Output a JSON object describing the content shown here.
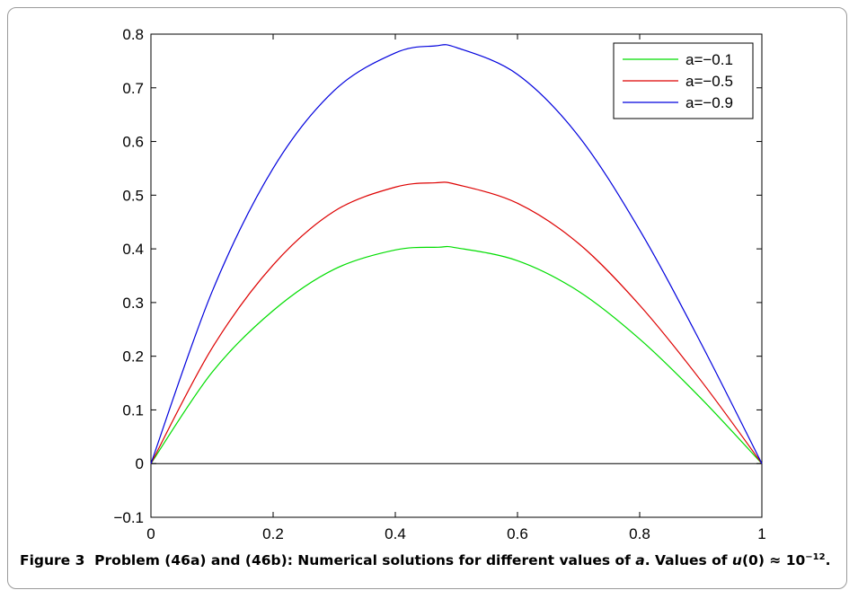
{
  "chart_data": {
    "type": "line",
    "xlim": [
      0,
      1
    ],
    "ylim": [
      -0.1,
      0.8
    ],
    "x_ticks": [
      "0",
      "0.2",
      "0.4",
      "0.6",
      "0.8",
      "1"
    ],
    "y_ticks": [
      "−0.1",
      "0",
      "0.1",
      "0.2",
      "0.3",
      "0.4",
      "0.5",
      "0.6",
      "0.7",
      "0.8"
    ],
    "legend_position": "top-right",
    "grid": false,
    "series": [
      {
        "name": "a=−0.1",
        "color": "#00dd00",
        "x": [
          0,
          0.1,
          0.2,
          0.3,
          0.4,
          0.47,
          0.5,
          0.6,
          0.7,
          0.8,
          0.9,
          1.0
        ],
        "y": [
          0,
          0.17,
          0.285,
          0.362,
          0.398,
          0.403,
          0.402,
          0.378,
          0.321,
          0.232,
          0.122,
          0
        ]
      },
      {
        "name": "a=−0.5",
        "color": "#dd0000",
        "x": [
          0,
          0.1,
          0.2,
          0.3,
          0.4,
          0.465,
          0.5,
          0.6,
          0.7,
          0.8,
          0.9,
          1.0
        ],
        "y": [
          0,
          0.215,
          0.37,
          0.47,
          0.515,
          0.523,
          0.52,
          0.485,
          0.41,
          0.295,
          0.155,
          0
        ]
      },
      {
        "name": "a=−0.9",
        "color": "#0000dd",
        "x": [
          0,
          0.1,
          0.2,
          0.3,
          0.4,
          0.465,
          0.5,
          0.6,
          0.7,
          0.8,
          0.9,
          1.0
        ],
        "y": [
          0,
          0.32,
          0.55,
          0.695,
          0.765,
          0.778,
          0.775,
          0.725,
          0.61,
          0.435,
          0.225,
          0
        ]
      }
    ]
  },
  "caption": {
    "label": "Figure 3",
    "text_1": "Problem (46a) and (46b): Numerical solutions for different values of ",
    "var_a": "a",
    "text_2": ". Values of ",
    "var_u": "u",
    "text_3": "(0) ≈ 10",
    "exponent": "−12",
    "text_4": "."
  }
}
